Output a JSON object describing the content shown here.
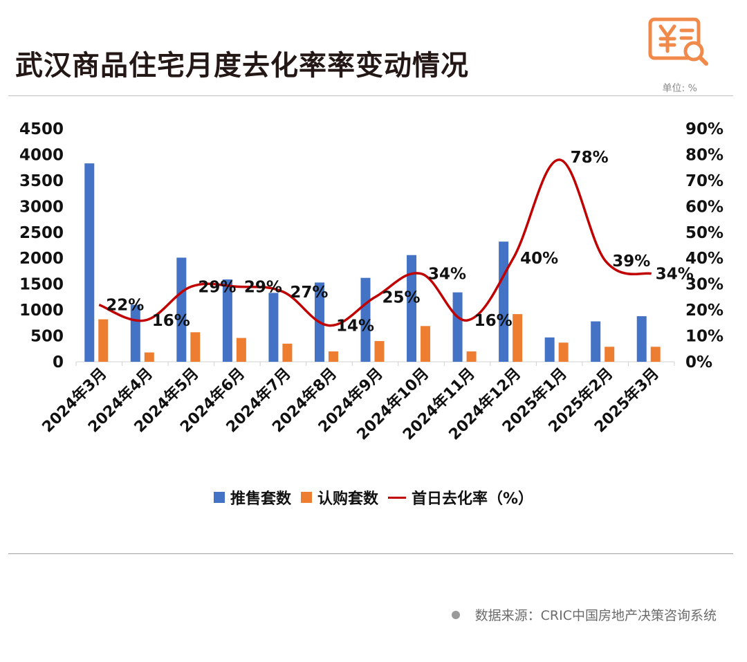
{
  "title": "武汉商品住宅月度去化率率变动情况",
  "unit_label": "单位: %",
  "source": "数据来源：CRIC中国房地产决策咨询系统",
  "logo": {
    "icon": "yuan-document-search-icon",
    "color": "#f08a4b"
  },
  "colors": {
    "supply": "#4472c4",
    "subscription": "#ed7d31",
    "rate": "#c00000"
  },
  "legend": {
    "supply": "推售套数",
    "subscription": "认购套数",
    "rate": "首日去化率（%）"
  },
  "chart_data": {
    "type": "bar",
    "categories": [
      "2024年3月",
      "2024年4月",
      "2024年5月",
      "2024年6月",
      "2024年7月",
      "2024年8月",
      "2024年9月",
      "2024年10月",
      "2024年11月",
      "2024年12月",
      "2025年1月",
      "2025年2月",
      "2025年3月"
    ],
    "series": [
      {
        "name": "推售套数",
        "type": "bar",
        "axis": "left",
        "values": [
          3830,
          1100,
          2010,
          1590,
          1330,
          1530,
          1620,
          2060,
          1340,
          2320,
          470,
          780,
          880
        ]
      },
      {
        "name": "认购套数",
        "type": "bar",
        "axis": "left",
        "values": [
          820,
          180,
          570,
          460,
          350,
          200,
          400,
          690,
          200,
          920,
          370,
          290,
          290
        ]
      },
      {
        "name": "首日去化率（%）",
        "type": "line",
        "smooth": true,
        "axis": "right",
        "values": [
          22,
          16,
          29,
          29,
          27,
          14,
          25,
          34,
          16,
          40,
          78,
          39,
          34
        ],
        "labels": [
          "22%",
          "16%",
          "29%",
          "29%",
          "27%",
          "14%",
          "25%",
          "34%",
          "16%",
          "40%",
          "78%",
          "39%",
          "34%"
        ]
      }
    ],
    "y_left": {
      "ylim": [
        0,
        4500
      ],
      "ticks": [
        "0",
        "500",
        "1000",
        "1500",
        "2000",
        "2500",
        "3000",
        "3500",
        "4000",
        "4500"
      ]
    },
    "y_right": {
      "ylim": [
        0,
        90
      ],
      "ticks": [
        "0%",
        "10%",
        "20%",
        "30%",
        "40%",
        "50%",
        "60%",
        "70%",
        "80%",
        "90%"
      ]
    },
    "grid": false,
    "legend_position": "bottom"
  }
}
